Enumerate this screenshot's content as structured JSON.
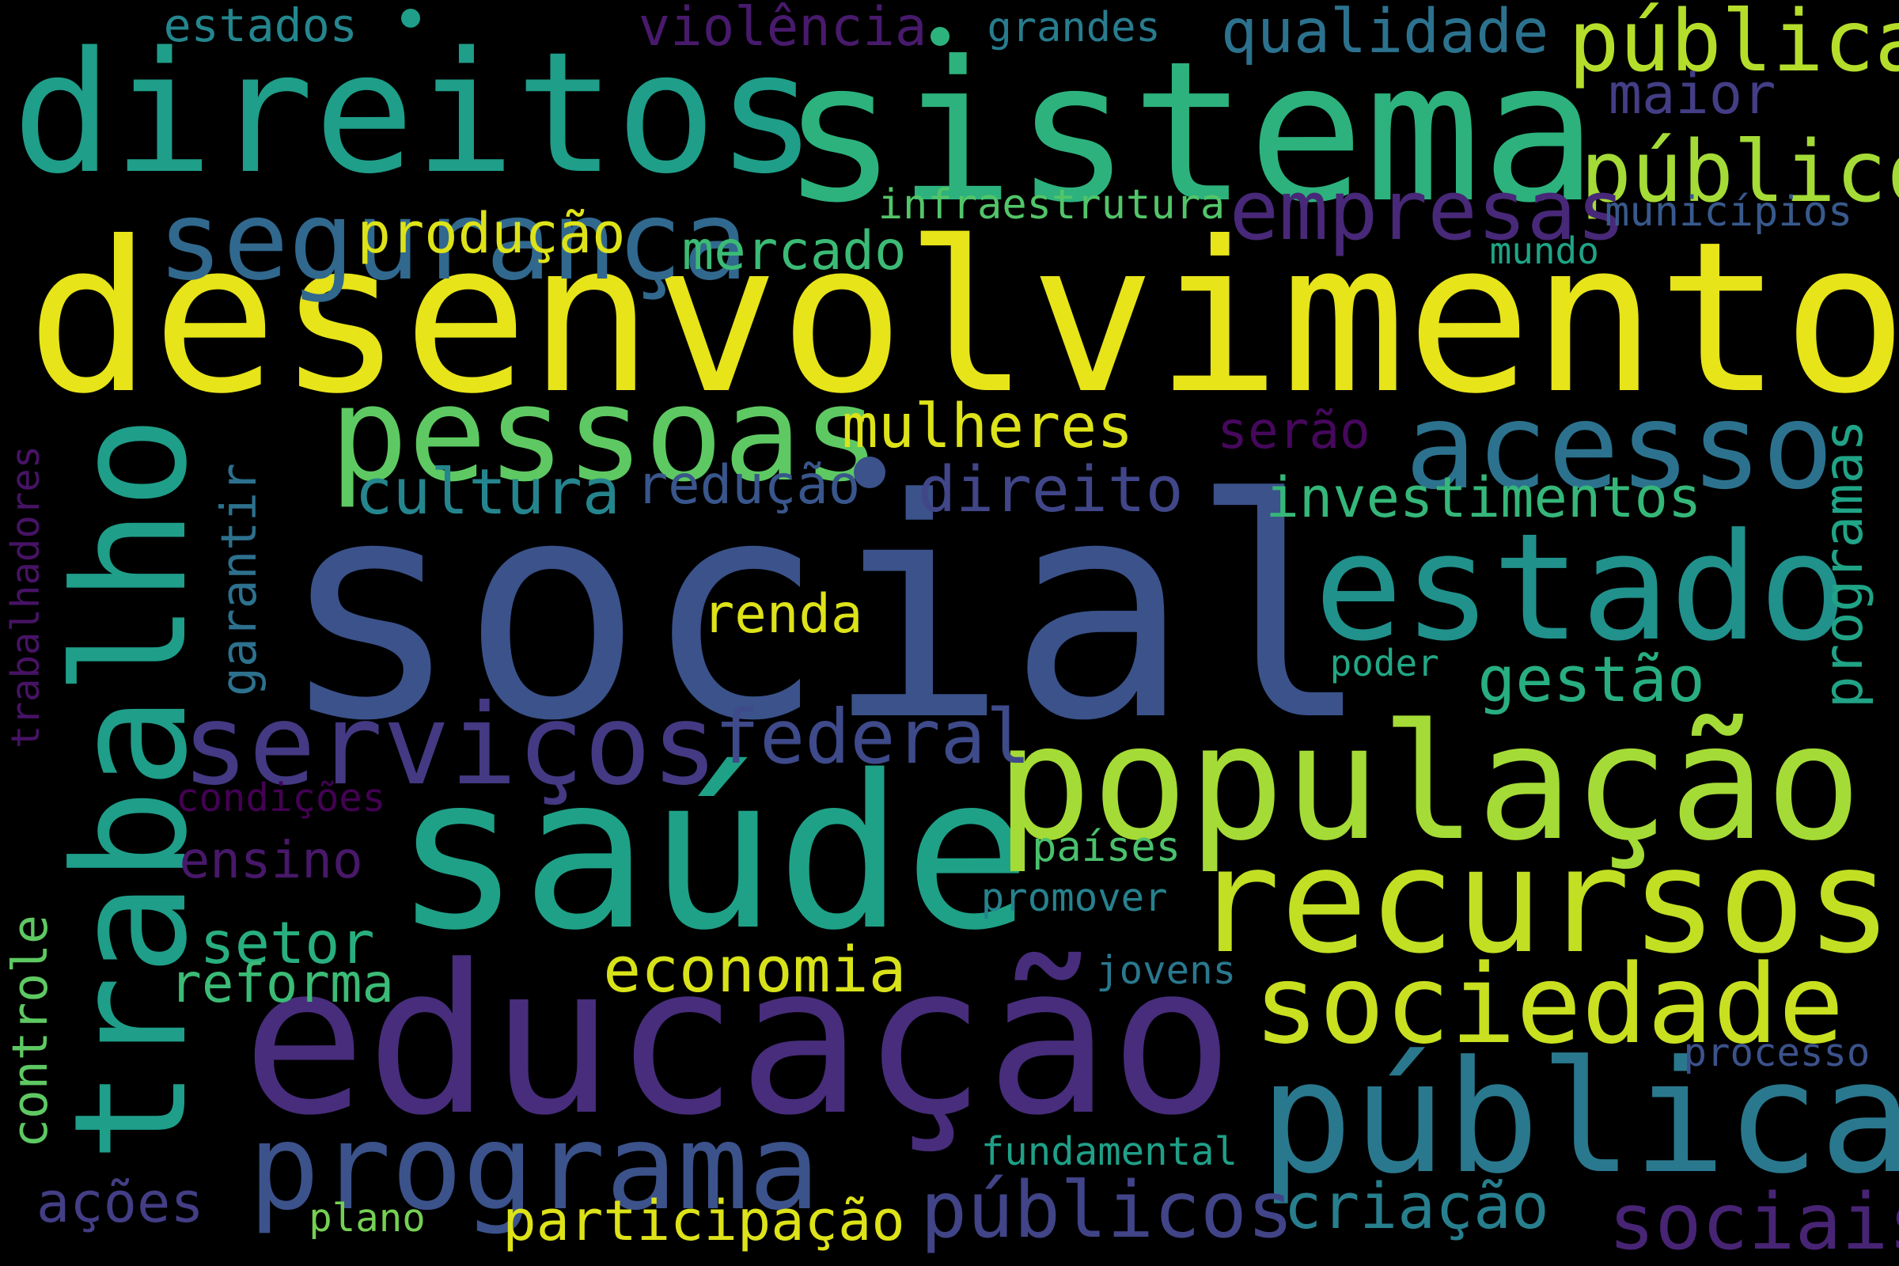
{
  "cloud": {
    "background": "#000000",
    "words": [
      {
        "text": "social",
        "color": "#3b528b"
      },
      {
        "text": "desenvolvimento",
        "color": "#e7e419"
      },
      {
        "text": "sistema",
        "color": "#2db27d"
      },
      {
        "text": "direitos",
        "color": "#1f9e89"
      },
      {
        "text": "educação",
        "color": "#472d7b"
      },
      {
        "text": "trabalho",
        "color": "#1f9e89"
      },
      {
        "text": "saúde",
        "color": "#1fa187"
      },
      {
        "text": "população",
        "color": "#a5db36"
      },
      {
        "text": "pública",
        "color": "#2a788e"
      },
      {
        "text": "recursos",
        "color": "#c2df23"
      },
      {
        "text": "estado",
        "color": "#21918c"
      },
      {
        "text": "segurança",
        "color": "#31688e"
      },
      {
        "text": "pessoas",
        "color": "#5ec962"
      },
      {
        "text": "acesso",
        "color": "#2c728e"
      },
      {
        "text": "programa",
        "color": "#3b528b"
      },
      {
        "text": "sociedade",
        "color": "#c8e020"
      },
      {
        "text": "serviços",
        "color": "#443983"
      },
      {
        "text": "públicas",
        "color": "#b5de2b"
      },
      {
        "text": "público",
        "color": "#a5db36"
      },
      {
        "text": "empresas",
        "color": "#482878"
      },
      {
        "text": "públicos",
        "color": "#414487"
      },
      {
        "text": "sociais",
        "color": "#482475"
      },
      {
        "text": "federal",
        "color": "#3e4a89"
      },
      {
        "text": "qualidade",
        "color": "#2c728e"
      },
      {
        "text": "criação",
        "color": "#277f8e"
      },
      {
        "text": "participação",
        "color": "#dde318"
      },
      {
        "text": "economia",
        "color": "#d8e219"
      },
      {
        "text": "investimentos",
        "color": "#35b779"
      },
      {
        "text": "cultura",
        "color": "#25858e"
      },
      {
        "text": "direito",
        "color": "#404688"
      },
      {
        "text": "mulheres",
        "color": "#dde318"
      },
      {
        "text": "gestão",
        "color": "#28ae80"
      },
      {
        "text": "maior",
        "color": "#433e85"
      },
      {
        "text": "produção",
        "color": "#dde318"
      },
      {
        "text": "mercado",
        "color": "#3bbb75"
      },
      {
        "text": "violência",
        "color": "#481a6c"
      },
      {
        "text": "redução",
        "color": "#39568c"
      },
      {
        "text": "renda",
        "color": "#dde318"
      },
      {
        "text": "setor",
        "color": "#29af7f"
      },
      {
        "text": "reforma",
        "color": "#3bbb75"
      },
      {
        "text": "ações",
        "color": "#433e85"
      },
      {
        "text": "programas",
        "color": "#20a386"
      },
      {
        "text": "serão",
        "color": "#46085c"
      },
      {
        "text": "garantir",
        "color": "#2d718e"
      },
      {
        "text": "ensino",
        "color": "#48186a"
      },
      {
        "text": "controle",
        "color": "#5ec962"
      },
      {
        "text": "infraestrutura",
        "color": "#52c569"
      },
      {
        "text": "estados",
        "color": "#24868e"
      },
      {
        "text": "grandes",
        "color": "#287c8e"
      },
      {
        "text": "municípios",
        "color": "#38598c"
      },
      {
        "text": "mundo",
        "color": "#20a486"
      },
      {
        "text": "trabalhadores",
        "color": "#471365"
      },
      {
        "text": "condições",
        "color": "#440154"
      },
      {
        "text": "poder",
        "color": "#22a785"
      },
      {
        "text": "países",
        "color": "#4ac16d"
      },
      {
        "text": "promover",
        "color": "#26828e"
      },
      {
        "text": "jovens",
        "color": "#2a788e"
      },
      {
        "text": "processo",
        "color": "#3b528b"
      },
      {
        "text": "fundamental",
        "color": "#1fa088"
      },
      {
        "text": "plano",
        "color": "#75d054"
      }
    ],
    "dots": [
      {
        "color": "#2db27d"
      },
      {
        "color": "#1f9e89"
      },
      {
        "color": "#3b528b"
      }
    ]
  }
}
